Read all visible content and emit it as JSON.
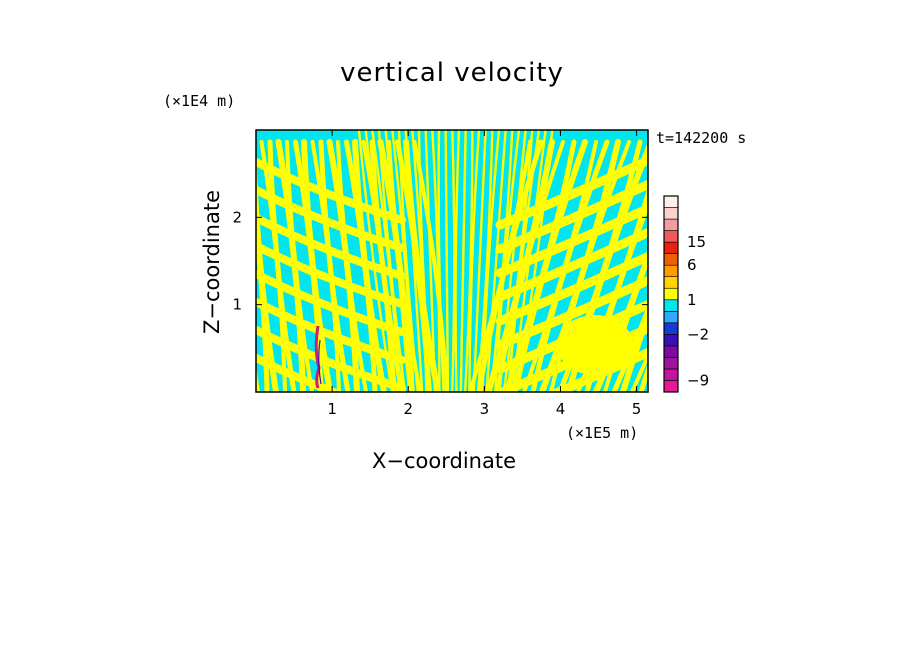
{
  "chart_data": {
    "type": "heatmap",
    "title": "vertical velocity",
    "xlabel": "X−coordinate",
    "ylabel": "Z−coordinate",
    "x_unit": "(×1E5 m)",
    "y_unit": "(×1E4 m)",
    "time_label": "t=142200 s",
    "xlim": [
      0,
      5.15
    ],
    "ylim": [
      0,
      3.0
    ],
    "x_ticks": [
      1,
      2,
      3,
      4,
      5
    ],
    "y_ticks": [
      1,
      2
    ],
    "x_tick_labels": [
      "1",
      "2",
      "3",
      "4",
      "5"
    ],
    "y_tick_labels": [
      "1",
      "2"
    ],
    "colorbar": {
      "colors": [
        "#e8189a",
        "#c0169e",
        "#a0129c",
        "#7a0aa0",
        "#3a0fb8",
        "#1a3ad8",
        "#33a8ff",
        "#00e5ee",
        "#ffff00",
        "#ffd400",
        "#ff9a00",
        "#f06000",
        "#e82010",
        "#f05a5a",
        "#f59c9c",
        "#fbd2cc",
        "#fff0ee"
      ],
      "tick_values": [
        -9,
        -2,
        1,
        6,
        15
      ],
      "tick_labels": [
        "−9",
        "−2",
        "1",
        "6",
        "15"
      ],
      "tick_levels": [
        1,
        5,
        8,
        11,
        13
      ]
    },
    "field_colors": {
      "positive": "#ffff00",
      "negative": "#00e5ee",
      "strong_up": "#cc1e7a",
      "strong_down": "#3a0fb8"
    }
  }
}
